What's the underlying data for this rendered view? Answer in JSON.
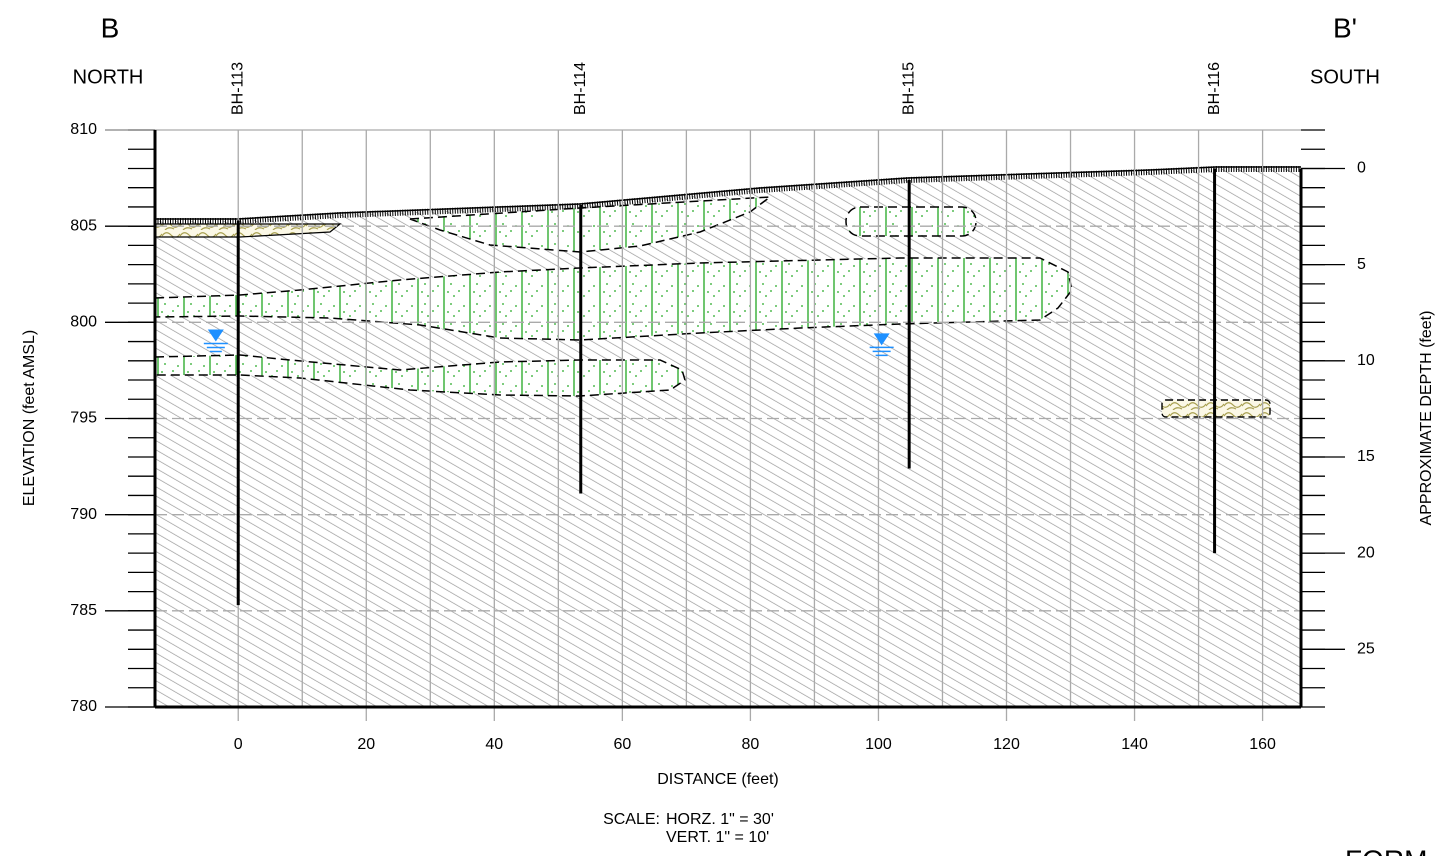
{
  "chart_data": {
    "type": "cross-section",
    "title": "B",
    "title_right": "B'",
    "left_label": "NORTH",
    "right_label": "SOUTH",
    "xlabel": "DISTANCE (feet)",
    "ylabel": "ELEVATION (feet AMSL)",
    "y2label": "APPROXIMATE DEPTH (feet)",
    "scale_label": "SCALE:",
    "scale_horz": "HORZ.   1\" = 30'",
    "scale_vert": "VERT.   1\" = 10'",
    "footer": "FORM",
    "xlim": [
      -13,
      166
    ],
    "xticks": [
      0,
      20,
      40,
      60,
      80,
      100,
      120,
      140,
      160
    ],
    "ylim": [
      780,
      810
    ],
    "yticks": [
      780,
      785,
      790,
      795,
      800,
      805,
      810
    ],
    "y2lim": [
      28,
      -2
    ],
    "y2ticks": [
      0,
      5,
      10,
      15,
      20,
      25
    ],
    "boreholes": [
      {
        "name": "BH-113",
        "x": 0,
        "top": 805.3,
        "bottom": 785.3
      },
      {
        "name": "BH-114",
        "x": 53.5,
        "top": 806.1,
        "bottom": 791.1
      },
      {
        "name": "BH-115",
        "x": 104.8,
        "top": 807.4,
        "bottom": 792.4
      },
      {
        "name": "BH-116",
        "x": 152.5,
        "top": 808,
        "bottom": 788
      }
    ],
    "water_levels": [
      {
        "x": -3.5,
        "y": 798.9
      },
      {
        "x": 100.5,
        "y": 798.7
      }
    ]
  }
}
